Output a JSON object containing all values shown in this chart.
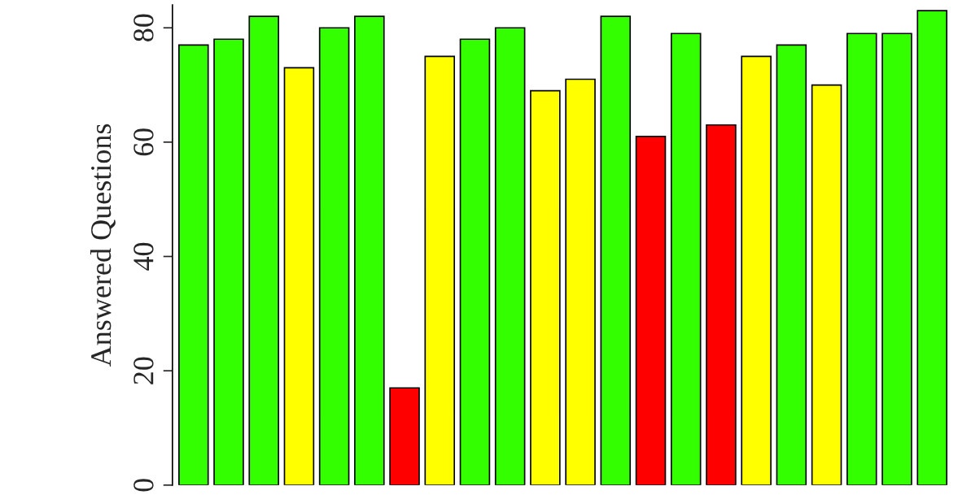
{
  "chart_data": {
    "type": "bar",
    "ylabel": "Answered Questions",
    "categories": [
      null,
      null,
      null,
      null,
      null,
      null,
      null,
      null,
      null,
      null,
      null,
      null,
      null,
      null,
      null,
      null,
      null,
      null,
      null,
      null,
      null,
      null
    ],
    "values": [
      77,
      78,
      82,
      73,
      80,
      82,
      17,
      75,
      78,
      80,
      69,
      71,
      82,
      61,
      79,
      63,
      75,
      77,
      70,
      79,
      79,
      83
    ],
    "colors": [
      "#33ff00",
      "#33ff00",
      "#33ff00",
      "#ffff00",
      "#33ff00",
      "#33ff00",
      "#ff0000",
      "#ffff00",
      "#33ff00",
      "#33ff00",
      "#ffff00",
      "#ffff00",
      "#33ff00",
      "#ff0000",
      "#33ff00",
      "#ff0000",
      "#ffff00",
      "#33ff00",
      "#ffff00",
      "#33ff00",
      "#33ff00",
      "#33ff00"
    ],
    "ylim": [
      0,
      84
    ],
    "yticks": [
      0,
      20,
      40,
      60,
      80
    ],
    "grid": false,
    "legend": false,
    "tick_labels": "y"
  }
}
